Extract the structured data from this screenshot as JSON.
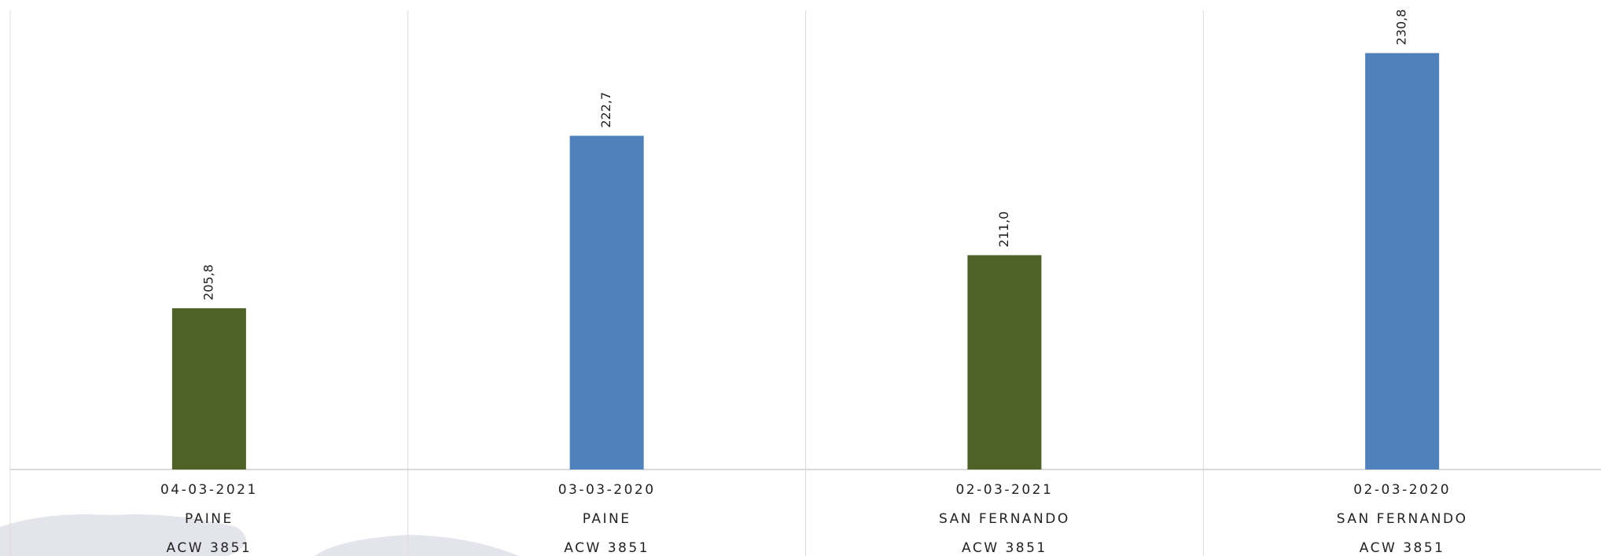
{
  "chart_data": {
    "type": "bar",
    "categories": [
      [
        "04-03-2021",
        "PAINE",
        "ACW 3851"
      ],
      [
        "03-03-2020",
        "PAINE",
        "ACW 3851"
      ],
      [
        "02-03-2021",
        "SAN FERNANDO",
        "ACW 3851"
      ],
      [
        "02-03-2020",
        "SAN FERNANDO",
        "ACW 3851"
      ]
    ],
    "values": [
      205.8,
      222.7,
      211.0,
      230.8
    ],
    "value_labels": [
      "205,8",
      "222,7",
      "211,0",
      "230,8"
    ],
    "colors": [
      "#4f6228",
      "#4f81bd",
      "#4f6228",
      "#4f81bd"
    ],
    "ylim": [
      190,
      235
    ]
  }
}
